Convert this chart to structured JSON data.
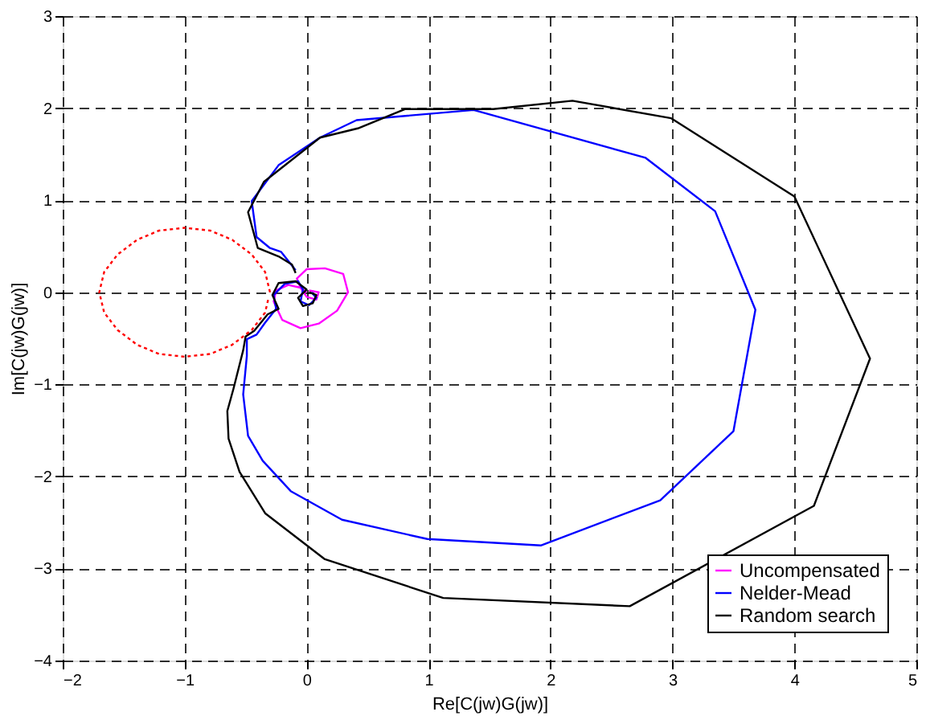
{
  "chart_data": {
    "type": "line",
    "xlabel": "Re[C(jw)G(jw)]",
    "ylabel": "Im[C(jw)G(jw)]",
    "xlim": [
      -2,
      5
    ],
    "ylim": [
      -4,
      3
    ],
    "xticks": [
      -2,
      -1,
      0,
      1,
      2,
      3,
      4,
      5
    ],
    "yticks": [
      -4,
      -3,
      -2,
      -1,
      0,
      1,
      2,
      3
    ],
    "grid": true,
    "legend": "bottom right",
    "line_style": "solid",
    "series": [
      {
        "name": "Uncompensated",
        "color": "#ff00ff",
        "x": [
          0.02,
          0.1,
          0.08,
          0.0,
          -0.05,
          -0.15,
          -0.25,
          -0.27,
          -0.2,
          -0.05,
          0.1,
          0.25,
          0.34,
          0.3,
          0.15,
          0.0,
          -0.08,
          -0.05,
          0.0
        ],
        "values": [
          0.02,
          0.0,
          -0.08,
          -0.05,
          0.05,
          0.08,
          0.02,
          -0.1,
          -0.3,
          -0.39,
          -0.34,
          -0.2,
          0.0,
          0.2,
          0.26,
          0.25,
          0.15,
          0.05,
          0.0
        ]
      },
      {
        "name": "Nelder-Mead",
        "color": "#0000ff",
        "x": [
          0.04,
          0.08,
          0.02,
          -0.05,
          -0.03,
          -0.07,
          -0.18,
          -0.27,
          -0.25,
          -0.34,
          -0.41,
          -0.49,
          -0.49,
          -0.52,
          -0.48,
          -0.36,
          -0.13,
          0.29,
          0.99,
          1.92,
          2.9,
          3.5,
          3.68,
          3.35,
          2.78,
          1.37,
          0.41,
          0.11,
          -0.23,
          -0.45,
          -0.41,
          -0.3,
          -0.21,
          -0.09
        ],
        "values": [
          0.0,
          -0.06,
          -0.14,
          -0.1,
          0.03,
          0.12,
          0.09,
          -0.03,
          -0.18,
          -0.33,
          -0.46,
          -0.51,
          -0.69,
          -1.11,
          -1.56,
          -1.83,
          -2.16,
          -2.47,
          -2.68,
          -2.75,
          -2.26,
          -1.51,
          -0.19,
          0.88,
          1.46,
          1.98,
          1.87,
          1.68,
          1.38,
          0.99,
          0.6,
          0.48,
          0.44,
          0.24
        ]
      },
      {
        "name": "Random search",
        "color": "#000000",
        "x": [
          0.02,
          0.08,
          0.05,
          -0.03,
          -0.07,
          0.0,
          -0.09,
          -0.23,
          -0.28,
          -0.23,
          -0.32,
          -0.43,
          -0.5,
          -0.52,
          -0.6,
          -0.65,
          -0.64,
          -0.55,
          -0.34,
          0.15,
          1.12,
          2.65,
          4.16,
          4.62,
          4.0,
          2.99,
          2.18,
          1.53,
          0.81,
          0.42,
          0.11,
          -0.35,
          -0.48,
          -0.4,
          -0.23,
          -0.12,
          -0.09
        ],
        "values": [
          0.0,
          -0.03,
          -0.12,
          -0.15,
          -0.06,
          0.03,
          0.12,
          0.1,
          -0.03,
          -0.18,
          -0.24,
          -0.42,
          -0.48,
          -0.63,
          -1.05,
          -1.29,
          -1.59,
          -1.95,
          -2.4,
          -2.9,
          -3.32,
          -3.41,
          -2.32,
          -0.72,
          1.04,
          1.89,
          2.08,
          1.99,
          1.99,
          1.78,
          1.68,
          1.2,
          0.87,
          0.48,
          0.39,
          0.3,
          0.21
        ]
      },
      {
        "color": "#ff0000",
        "line_style": "dotted",
        "x": [
          -0.3,
          -0.34,
          -0.45,
          -0.61,
          -0.79,
          -1.0,
          -1.21,
          -1.39,
          -1.55,
          -1.66,
          -1.7,
          -1.66,
          -1.55,
          -1.39,
          -1.21,
          -1.0,
          -0.79,
          -0.61,
          -0.45,
          -0.34,
          -0.31
        ],
        "values": [
          0.0,
          0.22,
          0.41,
          0.57,
          0.67,
          0.7,
          0.67,
          0.57,
          0.41,
          0.22,
          0.0,
          -0.22,
          -0.41,
          -0.57,
          -0.67,
          -0.7,
          -0.67,
          -0.57,
          -0.41,
          -0.22,
          -0.05
        ]
      }
    ]
  }
}
